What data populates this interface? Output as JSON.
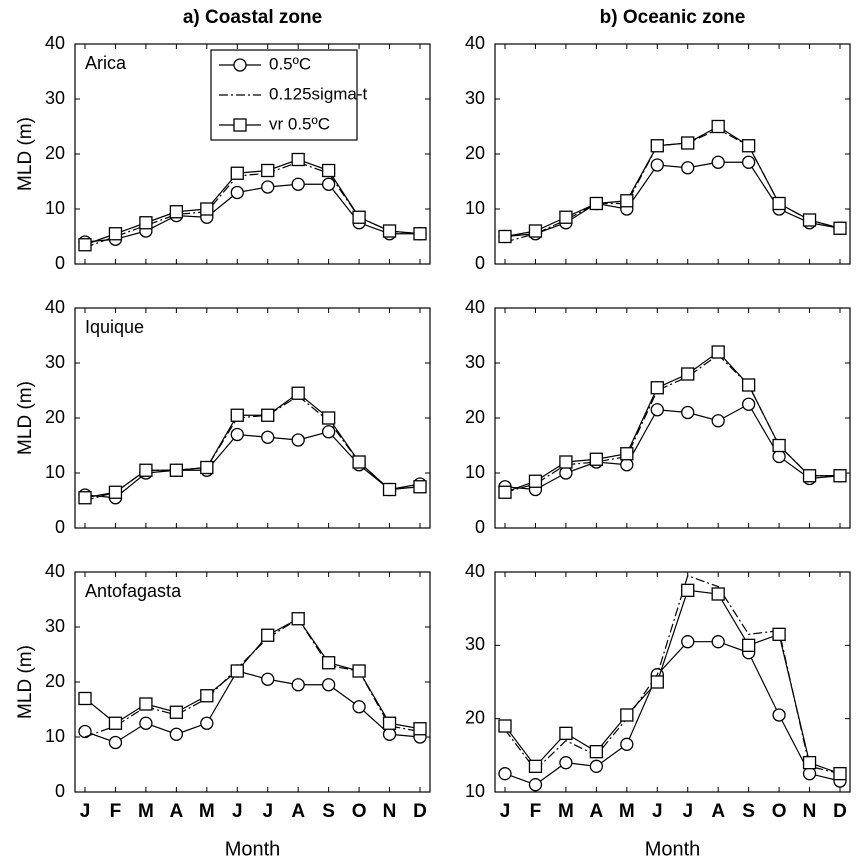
{
  "chart_data": [
    {
      "type": "line",
      "title": "a) Coastal zone",
      "ylabel": "MLD (m)",
      "annotation": "Arica",
      "categories": [
        null,
        null,
        null,
        null,
        null,
        null,
        null,
        null,
        null,
        null,
        null,
        null
      ],
      "ylim": [
        0,
        40
      ],
      "yticks": [
        0,
        10,
        20,
        30,
        40
      ],
      "legend": "upper center",
      "series": [
        {
          "name": "0.5ºC",
          "color": "#000000",
          "marker": "circle",
          "dash": "solid",
          "values": [
            4,
            4.5,
            6,
            8.8,
            8.5,
            13,
            14,
            14.5,
            14.5,
            7.5,
            5.5,
            5.5
          ]
        },
        {
          "name": "0.125sigma-t",
          "color": "#000000",
          "marker": "none",
          "dash": "dashdot",
          "values": [
            3,
            5,
            7,
            9,
            9.5,
            16,
            16.5,
            18.5,
            16.5,
            8.5,
            6,
            5.5
          ]
        },
        {
          "name": "vr 0.5ºC",
          "color": "#000000",
          "marker": "square",
          "dash": "solid",
          "values": [
            3.5,
            5.5,
            7.5,
            9.5,
            10,
            16.5,
            17,
            19,
            17,
            8.5,
            6,
            5.5
          ]
        }
      ]
    },
    {
      "type": "line",
      "title": "b) Oceanic zone",
      "categories": [
        null,
        null,
        null,
        null,
        null,
        null,
        null,
        null,
        null,
        null,
        null,
        null
      ],
      "ylim": [
        0,
        40
      ],
      "yticks": [
        0,
        10,
        20,
        30,
        40
      ],
      "series": [
        {
          "color": "#000000",
          "marker": "circle",
          "dash": "solid",
          "values": [
            5,
            5.5,
            7.5,
            11,
            10,
            18,
            17.5,
            18.5,
            18.5,
            10,
            7.5,
            6.5
          ]
        },
        {
          "color": "#000000",
          "marker": "none",
          "dash": "dashdot",
          "values": [
            4,
            5.5,
            8,
            11,
            11,
            21.5,
            22,
            24.5,
            21.5,
            11,
            8,
            6.5
          ]
        },
        {
          "color": "#000000",
          "marker": "square",
          "dash": "solid",
          "values": [
            5,
            6,
            8.5,
            11,
            11.5,
            21.5,
            22,
            25,
            21.5,
            11,
            8,
            6.5
          ]
        }
      ]
    },
    {
      "type": "line",
      "ylabel": "MLD (m)",
      "annotation": "Iquique",
      "categories": [
        null,
        null,
        null,
        null,
        null,
        null,
        null,
        null,
        null,
        null,
        null,
        null
      ],
      "ylim": [
        0,
        40
      ],
      "yticks": [
        0,
        10,
        20,
        30,
        40
      ],
      "series": [
        {
          "color": "#000000",
          "marker": "circle",
          "dash": "solid",
          "values": [
            6,
            5.5,
            10,
            10.5,
            10.5,
            17,
            16.5,
            16,
            17.5,
            11.5,
            7,
            8
          ]
        },
        {
          "color": "#000000",
          "marker": "none",
          "dash": "dashdot",
          "values": [
            5,
            6.5,
            10.5,
            10.5,
            11,
            20,
            20.5,
            24,
            19.5,
            12,
            7,
            7.5
          ]
        },
        {
          "color": "#000000",
          "marker": "square",
          "dash": "solid",
          "values": [
            5.5,
            6.5,
            10.5,
            10.5,
            11,
            20.5,
            20.5,
            24.5,
            20,
            12,
            7,
            7.5
          ]
        }
      ]
    },
    {
      "type": "line",
      "categories": [
        null,
        null,
        null,
        null,
        null,
        null,
        null,
        null,
        null,
        null,
        null,
        null
      ],
      "ylim": [
        0,
        40
      ],
      "yticks": [
        0,
        10,
        20,
        30,
        40
      ],
      "series": [
        {
          "color": "#000000",
          "marker": "circle",
          "dash": "solid",
          "values": [
            7.5,
            7,
            10,
            12,
            11.5,
            21.5,
            21,
            19.5,
            22.5,
            13,
            9,
            9.5
          ]
        },
        {
          "color": "#000000",
          "marker": "none",
          "dash": "dashdot",
          "values": [
            6.5,
            8,
            11.5,
            12,
            13,
            25,
            27.5,
            31.5,
            26,
            15,
            9.5,
            9.5
          ]
        },
        {
          "color": "#000000",
          "marker": "square",
          "dash": "solid",
          "values": [
            6.5,
            8.5,
            12,
            12.5,
            13.5,
            25.5,
            28,
            32,
            26,
            15,
            9.5,
            9.5
          ]
        }
      ]
    },
    {
      "type": "line",
      "ylabel": "MLD (m)",
      "xlabel": "Month",
      "annotation": "Antofagasta",
      "categories": [
        "J",
        "F",
        "M",
        "A",
        "M",
        "J",
        "J",
        "A",
        "S",
        "O",
        "N",
        "D"
      ],
      "ylim": [
        0,
        40
      ],
      "yticks": [
        0,
        10,
        20,
        30,
        40
      ],
      "series": [
        {
          "color": "#000000",
          "marker": "circle",
          "dash": "solid",
          "values": [
            11,
            9,
            12.5,
            10.5,
            12.5,
            22,
            20.5,
            19.5,
            19.5,
            15.5,
            10.5,
            10
          ]
        },
        {
          "color": "#000000",
          "marker": "none",
          "dash": "dashdot",
          "values": [
            10,
            12,
            15.5,
            14,
            17,
            22.5,
            28,
            31.5,
            23,
            22,
            12,
            11
          ]
        },
        {
          "color": "#000000",
          "marker": "square",
          "dash": "solid",
          "values": [
            17,
            12.5,
            16,
            14.5,
            17.5,
            22,
            28.5,
            31.5,
            23.5,
            22,
            12.5,
            11.5
          ]
        }
      ]
    },
    {
      "type": "line",
      "xlabel": "Month",
      "categories": [
        "J",
        "F",
        "M",
        "A",
        "M",
        "J",
        "J",
        "A",
        "S",
        "O",
        "N",
        "D"
      ],
      "ylim": [
        10,
        40
      ],
      "yticks": [
        10,
        20,
        30,
        40
      ],
      "series": [
        {
          "color": "#000000",
          "marker": "circle",
          "dash": "solid",
          "values": [
            12.5,
            11,
            14,
            13.5,
            16.5,
            26,
            30.5,
            30.5,
            29,
            20.5,
            12.5,
            11.5
          ]
        },
        {
          "color": "#000000",
          "marker": "none",
          "dash": "dashdot",
          "values": [
            18.5,
            13,
            17,
            15,
            20,
            26,
            39.5,
            38,
            31.5,
            32,
            13.5,
            12.5
          ]
        },
        {
          "color": "#000000",
          "marker": "square",
          "dash": "solid",
          "values": [
            19,
            13.5,
            18,
            15.5,
            20.5,
            25,
            37.5,
            37,
            30,
            31.5,
            14,
            12.5
          ]
        }
      ]
    }
  ]
}
